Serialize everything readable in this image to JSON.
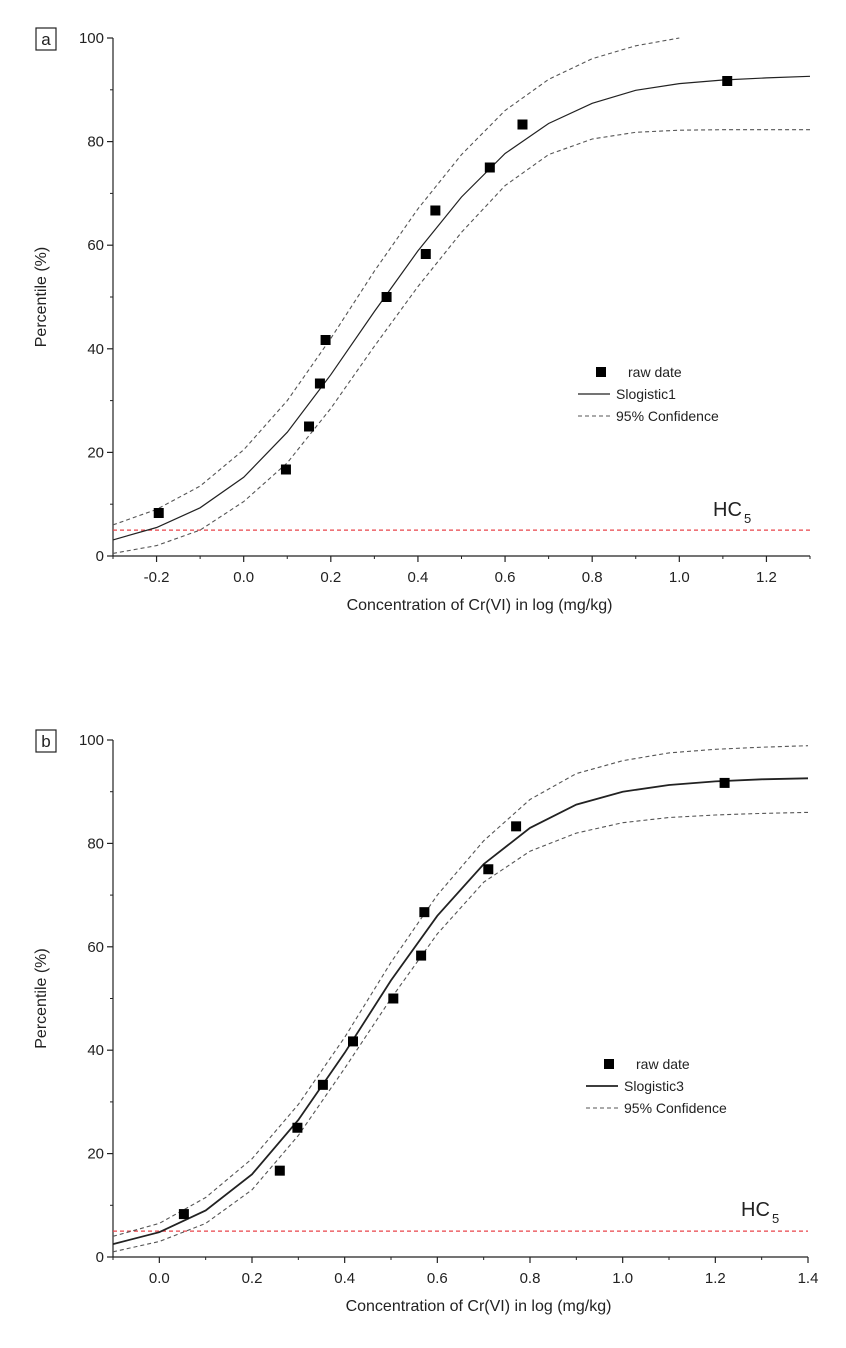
{
  "figure": {
    "background": "#ffffff",
    "axis_color": "#222222"
  },
  "chart_data": [
    {
      "panel_label": "a",
      "type": "scatter",
      "xlabel": "Concentration of Cr(VI) in log (mg/kg)",
      "ylabel": "Percentile (%)",
      "xlim": [
        -0.3,
        1.3
      ],
      "ylim": [
        0,
        100
      ],
      "x_ticks": [
        -0.2,
        0.0,
        0.2,
        0.4,
        0.6,
        0.8,
        1.0,
        1.2
      ],
      "x_tick_labels": [
        "-0.2",
        "0.0",
        "0.2",
        "0.4",
        "0.6",
        "0.8",
        "1.0",
        "1.2"
      ],
      "y_ticks": [
        0,
        20,
        40,
        60,
        80,
        100
      ],
      "y_tick_labels": [
        "0",
        "20",
        "40",
        "60",
        "80",
        "100"
      ],
      "raw_data": {
        "name": "raw date",
        "x": [
          -0.195,
          0.097,
          0.15,
          0.175,
          0.188,
          0.328,
          0.418,
          0.44,
          0.565,
          0.64,
          1.11
        ],
        "y": [
          8.3,
          16.7,
          25.0,
          33.3,
          41.7,
          50.0,
          58.3,
          66.7,
          75.0,
          83.3,
          91.7
        ]
      },
      "fit": {
        "name": "Slogistic1",
        "x": [
          -0.3,
          -0.2,
          -0.1,
          0.0,
          0.1,
          0.2,
          0.3,
          0.4,
          0.5,
          0.6,
          0.7,
          0.8,
          0.9,
          1.0,
          1.1,
          1.2,
          1.3
        ],
        "y": [
          3.1,
          5.5,
          9.3,
          15.2,
          23.9,
          35.0,
          47.2,
          58.9,
          69.3,
          77.7,
          83.5,
          87.4,
          89.9,
          91.2,
          91.9,
          92.3,
          92.6
        ]
      },
      "confidence_upper": {
        "name": "95% Confidence",
        "x": [
          -0.3,
          -0.2,
          -0.1,
          0.0,
          0.1,
          0.2,
          0.3,
          0.4,
          0.5,
          0.6,
          0.7,
          0.8,
          0.9,
          1.0
        ],
        "y": [
          6.0,
          9.0,
          13.5,
          20.5,
          30.0,
          42.0,
          55.0,
          67.0,
          77.5,
          86.0,
          92.0,
          96.0,
          98.5,
          100.0
        ]
      },
      "confidence_lower": {
        "name": "95% Confidence",
        "x": [
          -0.3,
          -0.2,
          -0.1,
          0.0,
          0.1,
          0.2,
          0.3,
          0.4,
          0.5,
          0.6,
          0.7,
          0.8,
          0.9,
          1.0,
          1.1,
          1.2,
          1.3
        ],
        "y": [
          0.5,
          2.0,
          5.0,
          10.5,
          18.0,
          28.5,
          40.5,
          52.0,
          62.5,
          71.5,
          77.5,
          80.5,
          81.8,
          82.2,
          82.3,
          82.3,
          82.3
        ]
      },
      "hc5": {
        "label": "HC",
        "subscript": "5",
        "y": 5,
        "color": "#e8434a"
      },
      "legend": {
        "placement": "middle-right",
        "entries": [
          "raw date",
          "Slogistic1",
          "95% Confidence"
        ]
      }
    },
    {
      "panel_label": "b",
      "type": "scatter",
      "xlabel": "Concentration of Cr(VI) in log (mg/kg)",
      "ylabel": "Percentile (%)",
      "xlim": [
        -0.1,
        1.4
      ],
      "ylim": [
        0,
        100
      ],
      "x_ticks": [
        0.0,
        0.2,
        0.4,
        0.6,
        0.8,
        1.0,
        1.2,
        1.4
      ],
      "x_tick_labels": [
        "0.0",
        "0.2",
        "0.4",
        "0.6",
        "0.8",
        "1.0",
        "1.2",
        "1.4"
      ],
      "y_ticks": [
        0,
        20,
        40,
        60,
        80,
        100
      ],
      "y_tick_labels": [
        "0",
        "20",
        "40",
        "60",
        "80",
        "100"
      ],
      "raw_data": {
        "name": "raw date",
        "x": [
          0.053,
          0.26,
          0.298,
          0.353,
          0.418,
          0.505,
          0.565,
          0.572,
          0.71,
          0.77,
          1.22
        ],
        "y": [
          8.3,
          16.7,
          25.0,
          33.3,
          41.7,
          50.0,
          58.3,
          66.7,
          75.0,
          83.3,
          91.7
        ]
      },
      "fit": {
        "name": "Slogistic3",
        "x": [
          -0.1,
          0.0,
          0.1,
          0.2,
          0.3,
          0.4,
          0.5,
          0.6,
          0.7,
          0.8,
          0.9,
          1.0,
          1.1,
          1.2,
          1.3,
          1.4
        ],
        "y": [
          2.5,
          4.8,
          9.0,
          16.0,
          26.5,
          39.5,
          53.5,
          66.0,
          76.0,
          83.0,
          87.5,
          90.0,
          91.3,
          92.0,
          92.4,
          92.6
        ]
      },
      "confidence_upper": {
        "name": "95% Confidence",
        "x": [
          -0.1,
          0.0,
          0.1,
          0.2,
          0.3,
          0.4,
          0.5,
          0.6,
          0.7,
          0.8,
          0.9,
          1.0,
          1.1,
          1.2,
          1.3,
          1.4
        ],
        "y": [
          4.0,
          6.5,
          11.5,
          19.0,
          29.5,
          42.5,
          57.0,
          70.0,
          80.5,
          88.5,
          93.5,
          96.0,
          97.5,
          98.2,
          98.6,
          98.9
        ]
      },
      "confidence_lower": {
        "name": "95% Confidence",
        "x": [
          -0.1,
          0.0,
          0.1,
          0.2,
          0.3,
          0.4,
          0.5,
          0.6,
          0.7,
          0.8,
          0.9,
          1.0,
          1.1,
          1.2,
          1.3,
          1.4
        ],
        "y": [
          1.0,
          3.0,
          6.5,
          13.0,
          23.5,
          36.5,
          50.0,
          62.5,
          72.5,
          78.5,
          82.0,
          84.0,
          85.0,
          85.5,
          85.8,
          86.0
        ]
      },
      "hc5": {
        "label": "HC",
        "subscript": "5",
        "y": 5,
        "color": "#e8434a"
      },
      "legend": {
        "placement": "middle-right",
        "entries": [
          "raw date",
          "Slogistic3",
          "95% Confidence"
        ]
      }
    }
  ]
}
